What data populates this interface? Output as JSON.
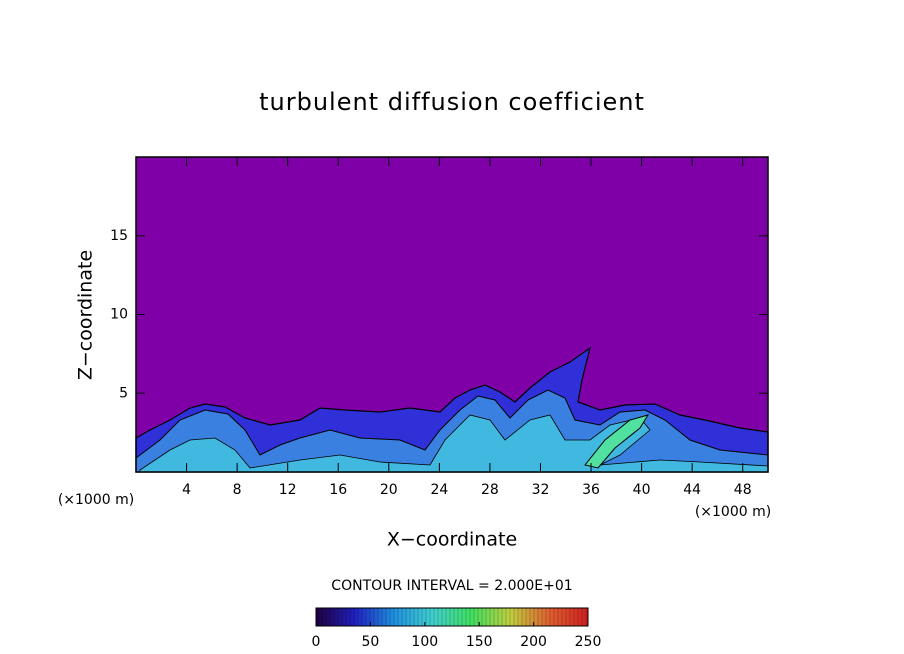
{
  "chart_data": {
    "type": "contour",
    "title": "turbulent diffusion coefficient",
    "xlabel": "X−coordinate",
    "ylabel": "Z−coordinate",
    "x_unit": "(×1000 m)",
    "y_unit": "(×1000 m)",
    "xlim": [
      0,
      50
    ],
    "ylim": [
      0,
      20
    ],
    "xticks": [
      4,
      8,
      12,
      16,
      20,
      24,
      28,
      32,
      36,
      40,
      44,
      48
    ],
    "yticks": [
      5,
      10,
      15
    ],
    "background_color": "#8000a8",
    "contour_note": "CONTOUR INTERVAL = 2.000E+01",
    "colorbar": {
      "lim": [
        0,
        250
      ],
      "ticks": [
        0,
        50,
        100,
        150,
        200,
        250
      ],
      "colors": [
        "#200040",
        "#2020c0",
        "#2090e0",
        "#40d0d0",
        "#40e060",
        "#c0d040",
        "#e06030",
        "#d02020"
      ]
    }
  }
}
